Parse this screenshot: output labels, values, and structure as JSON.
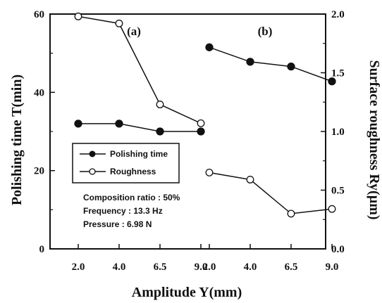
{
  "chart_data": {
    "type": "line",
    "xlabel": "Amplitude  Y(mm)",
    "ylabel_left": "Polishing time  T(min)",
    "ylabel_right": "Surface roughness  Ry(µm)",
    "ylim_left": [
      0,
      60
    ],
    "ylim_right": [
      0.0,
      2.0
    ],
    "yticks_left": [
      "0",
      "20",
      "40",
      "60"
    ],
    "yticks_right": [
      "0.0",
      "0.5",
      "1.0",
      "1.5",
      "2.0"
    ],
    "grid": false,
    "legend": {
      "placement": "left-middle",
      "entries": [
        {
          "label": "Polishing time",
          "marker": "filled"
        },
        {
          "label": "Roughness",
          "marker": "open"
        }
      ]
    },
    "annotations": [
      "Composition ratio : 50%",
      "Frequency : 13.3 Hz",
      "Pressure : 6.98 N"
    ],
    "panels": [
      {
        "label": "(a)",
        "categories": [
          "2.0",
          "4.0",
          "6.5",
          "9.0"
        ],
        "series": [
          {
            "name": "Polishing time",
            "axis": "left",
            "marker": "filled",
            "values": [
              32,
              32,
              30,
              30
            ]
          },
          {
            "name": "Roughness",
            "axis": "right",
            "marker": "open",
            "values": [
              1.98,
              1.92,
              1.23,
              1.07
            ]
          }
        ]
      },
      {
        "label": "(b)",
        "categories": [
          "2.0",
          "4.0",
          "6.5",
          "9.0"
        ],
        "series": [
          {
            "name": "Polishing time",
            "axis": "left",
            "marker": "filled",
            "values": [
              51.5,
              47.8,
              46.6,
              42.8
            ]
          },
          {
            "name": "Roughness",
            "axis": "right",
            "marker": "open",
            "values": [
              0.65,
              0.59,
              0.3,
              0.34
            ]
          }
        ]
      }
    ]
  }
}
